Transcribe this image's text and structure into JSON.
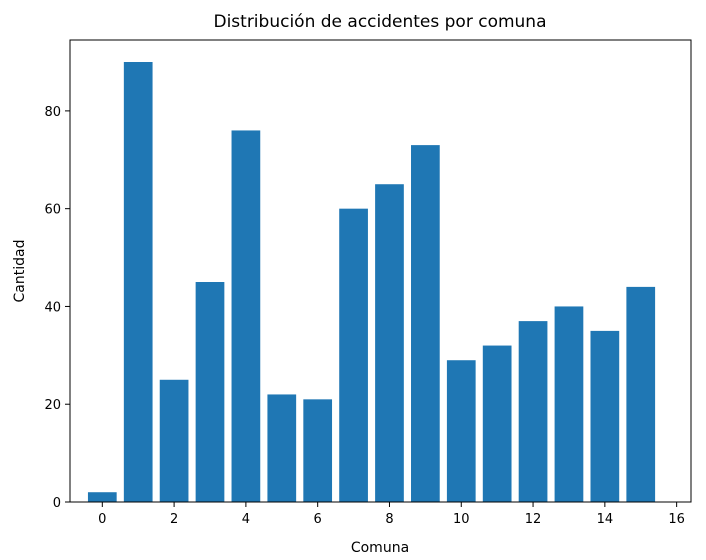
{
  "chart_data": {
    "type": "bar",
    "title": "Distribución de accidentes por comuna",
    "xlabel": "Comuna",
    "ylabel": "Cantidad",
    "x": [
      0,
      1,
      2,
      3,
      4,
      5,
      6,
      7,
      8,
      9,
      10,
      11,
      12,
      13,
      14,
      15
    ],
    "values": [
      2,
      90,
      25,
      45,
      76,
      22,
      21,
      60,
      65,
      73,
      29,
      32,
      37,
      40,
      35,
      44
    ],
    "xlim": [
      -0.9,
      16.4
    ],
    "ylim": [
      0,
      94.5
    ],
    "xticks": [
      0,
      2,
      4,
      6,
      8,
      10,
      12,
      14,
      16
    ],
    "yticks": [
      0,
      20,
      40,
      60,
      80
    ],
    "bar_color": "#1f77b4",
    "grid": false,
    "legend": "none"
  }
}
